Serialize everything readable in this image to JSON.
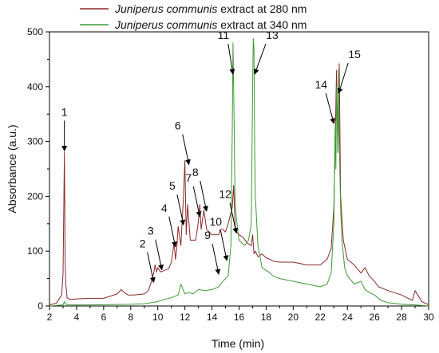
{
  "chart_data": {
    "type": "line",
    "xlabel": "Time (min)",
    "ylabel": "Absorbance (a.u.)",
    "xlim": [
      2,
      30
    ],
    "ylim": [
      0,
      500
    ],
    "xticks": [
      2,
      4,
      6,
      8,
      10,
      12,
      14,
      16,
      18,
      20,
      22,
      24,
      26,
      28,
      30
    ],
    "yticks": [
      0,
      100,
      200,
      300,
      400,
      500
    ],
    "legend_position": "top-center",
    "series": [
      {
        "name": "Juniperus communis extract at 280 nm",
        "name_parts": {
          "species": "Juniperus communis",
          "rest": " extract at 280 nm"
        },
        "color": "#8b2a2a",
        "x": [
          2.0,
          2.5,
          2.9,
          3.0,
          3.1,
          3.15,
          3.2,
          3.3,
          3.5,
          4.0,
          5.0,
          6.0,
          6.5,
          7.0,
          7.3,
          7.5,
          7.8,
          8.2,
          9.0,
          9.3,
          9.5,
          9.7,
          9.8,
          9.9,
          10.0,
          10.2,
          10.5,
          10.8,
          11.0,
          11.2,
          11.3,
          11.4,
          11.5,
          11.7,
          11.9,
          12.0,
          12.1,
          12.2,
          12.4,
          12.6,
          12.8,
          13.0,
          13.1,
          13.2,
          13.4,
          13.6,
          13.8,
          14.0,
          14.3,
          14.5,
          14.6,
          14.8,
          15.0,
          15.2,
          15.4,
          15.5,
          15.6,
          15.7,
          15.8,
          16.0,
          16.3,
          16.6,
          16.9,
          17.0,
          17.1,
          17.2,
          17.4,
          17.7,
          18.0,
          18.3,
          18.5,
          19.0,
          20.0,
          21.0,
          22.0,
          22.5,
          22.8,
          23.0,
          23.1,
          23.2,
          23.3,
          23.4,
          23.5,
          23.7,
          24.0,
          24.5,
          25.0,
          25.3,
          25.6,
          26.0,
          26.3,
          27.0,
          28.0,
          28.8,
          29.0,
          29.2,
          29.5,
          30.0
        ],
        "y": [
          2,
          5,
          20,
          60,
          281,
          90,
          40,
          15,
          12,
          13,
          14,
          14,
          18,
          22,
          30,
          25,
          20,
          20,
          22,
          28,
          42,
          60,
          75,
          62,
          70,
          62,
          65,
          68,
          80,
          115,
          85,
          105,
          145,
          110,
          200,
          265,
          130,
          185,
          120,
          120,
          120,
          155,
          185,
          140,
          175,
          140,
          135,
          130,
          130,
          130,
          140,
          140,
          135,
          150,
          170,
          180,
          220,
          150,
          135,
          130,
          125,
          115,
          110,
          130,
          95,
          100,
          90,
          95,
          88,
          85,
          82,
          80,
          80,
          75,
          75,
          85,
          105,
          180,
          300,
          430,
          280,
          442,
          200,
          120,
          85,
          75,
          60,
          70,
          55,
          45,
          35,
          28,
          20,
          10,
          28,
          20,
          8,
          2
        ]
      },
      {
        "name": "Juniperus communis extract at 340 nm",
        "name_parts": {
          "species": "Juniperus communis",
          "rest": " extract at 340 nm"
        },
        "color": "#3f9a35",
        "x": [
          2.0,
          3.0,
          3.1,
          3.2,
          3.5,
          5.0,
          8.0,
          9.0,
          10.0,
          10.5,
          11.0,
          11.5,
          11.7,
          12.0,
          12.3,
          12.6,
          13.0,
          13.5,
          14.0,
          14.5,
          14.8,
          15.0,
          15.2,
          15.4,
          15.5,
          15.55,
          15.6,
          15.65,
          15.7,
          15.8,
          16.0,
          16.4,
          16.7,
          16.9,
          17.0,
          17.05,
          17.1,
          17.15,
          17.2,
          17.4,
          17.7,
          18.0,
          18.3,
          18.5,
          19.0,
          20.0,
          21.0,
          22.0,
          22.5,
          22.8,
          23.0,
          23.1,
          23.15,
          23.2,
          23.3,
          23.35,
          23.4,
          23.5,
          23.6,
          23.8,
          24.0,
          24.5,
          25.0,
          25.3,
          25.6,
          26.0,
          26.5,
          27.0,
          28.0,
          29.0,
          30.0
        ],
        "y": [
          0,
          2,
          8,
          3,
          2,
          2,
          3,
          4,
          8,
          12,
          15,
          20,
          40,
          22,
          25,
          22,
          30,
          28,
          30,
          35,
          45,
          50,
          55,
          110,
          320,
          480,
          400,
          300,
          200,
          160,
          120,
          110,
          120,
          150,
          400,
          488,
          470,
          300,
          200,
          110,
          70,
          65,
          60,
          55,
          50,
          45,
          40,
          35,
          40,
          60,
          150,
          330,
          250,
          400,
          280,
          430,
          300,
          180,
          120,
          70,
          55,
          40,
          45,
          30,
          25,
          20,
          10,
          6,
          3,
          2,
          0
        ]
      }
    ],
    "annotations": [
      {
        "label": "1",
        "x": 3.1,
        "y": 280
      },
      {
        "label": "2",
        "x": 9.7,
        "y": 40
      },
      {
        "label": "3",
        "x": 10.3,
        "y": 63
      },
      {
        "label": "4",
        "x": 11.3,
        "y": 105
      },
      {
        "label": "5",
        "x": 11.9,
        "y": 145
      },
      {
        "label": "6",
        "x": 12.3,
        "y": 255
      },
      {
        "label": "7",
        "x": 13.1,
        "y": 160
      },
      {
        "label": "8",
        "x": 13.6,
        "y": 170
      },
      {
        "label": "9",
        "x": 14.5,
        "y": 55
      },
      {
        "label": "10",
        "x": 15.1,
        "y": 80
      },
      {
        "label": "11",
        "x": 15.55,
        "y": 420
      },
      {
        "label": "12",
        "x": 15.8,
        "y": 130
      },
      {
        "label": "13",
        "x": 17.15,
        "y": 420
      },
      {
        "label": "14",
        "x": 23.0,
        "y": 330
      },
      {
        "label": "15",
        "x": 23.35,
        "y": 385
      }
    ]
  }
}
